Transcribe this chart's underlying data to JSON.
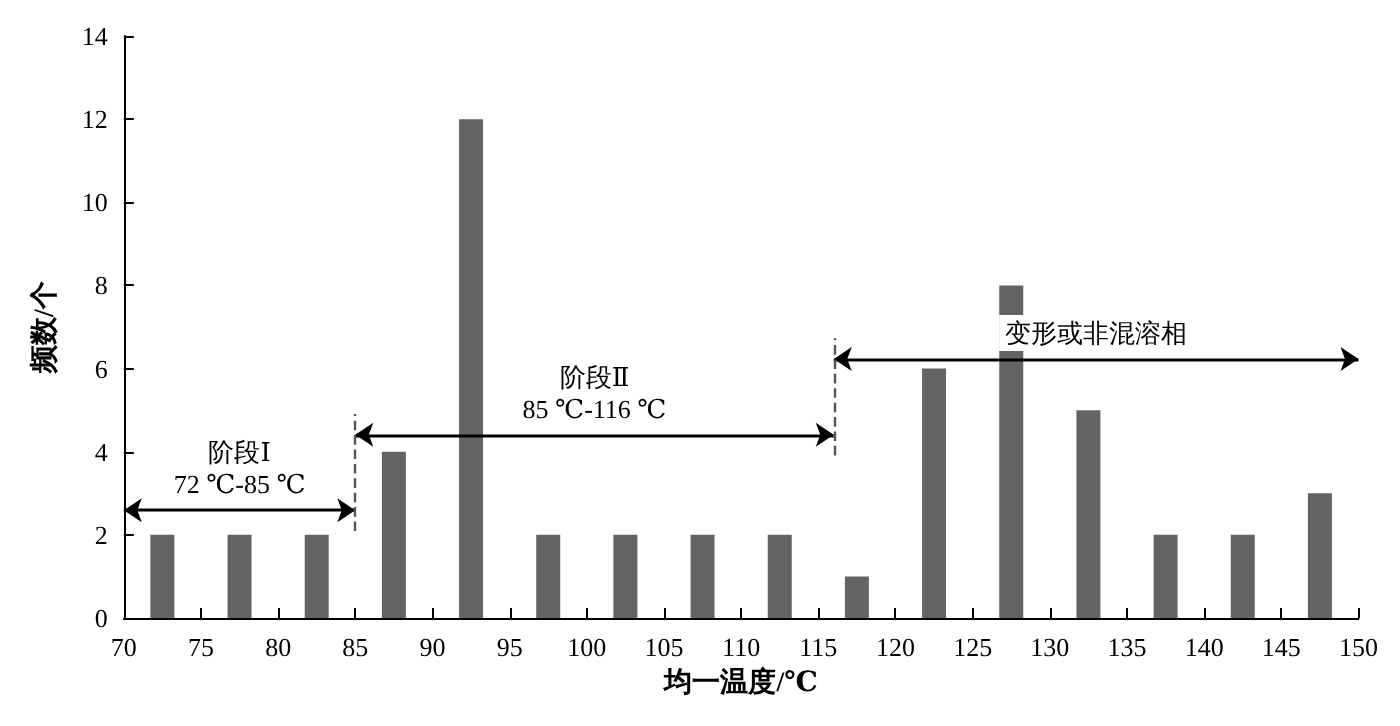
{
  "chart_data": {
    "type": "histogram",
    "xlabel": "均一温度/℃",
    "ylabel": "频数/个",
    "bins": [
      70,
      75,
      80,
      85,
      90,
      95,
      100,
      105,
      110,
      115,
      120,
      125,
      130,
      135,
      140,
      145,
      150
    ],
    "values": [
      2,
      2,
      2,
      4,
      12,
      2,
      2,
      2,
      2,
      1,
      6,
      8,
      5,
      2,
      2,
      3
    ],
    "color": "#646464",
    "xlim": [
      70,
      150
    ],
    "xticks": [
      70,
      75,
      80,
      85,
      90,
      95,
      100,
      105,
      110,
      115,
      120,
      125,
      130,
      135,
      140,
      145,
      150
    ],
    "ylim": [
      0,
      14
    ],
    "yticks": [
      0,
      2,
      4,
      6,
      8,
      10,
      12,
      14
    ],
    "grid": false,
    "annotations": [
      "阶段Ⅰ\n72 ℃-85 ℃",
      "阶段Ⅱ\n85 ℃-116 ℃",
      "变形或非混溶相"
    ],
    "ref_lines": [
      {
        "axis": "x",
        "value": 85,
        "line_style": "dashed",
        "color": "#555555"
      },
      {
        "axis": "x",
        "value": 116,
        "line_style": "dashed",
        "color": "#555555"
      }
    ]
  }
}
